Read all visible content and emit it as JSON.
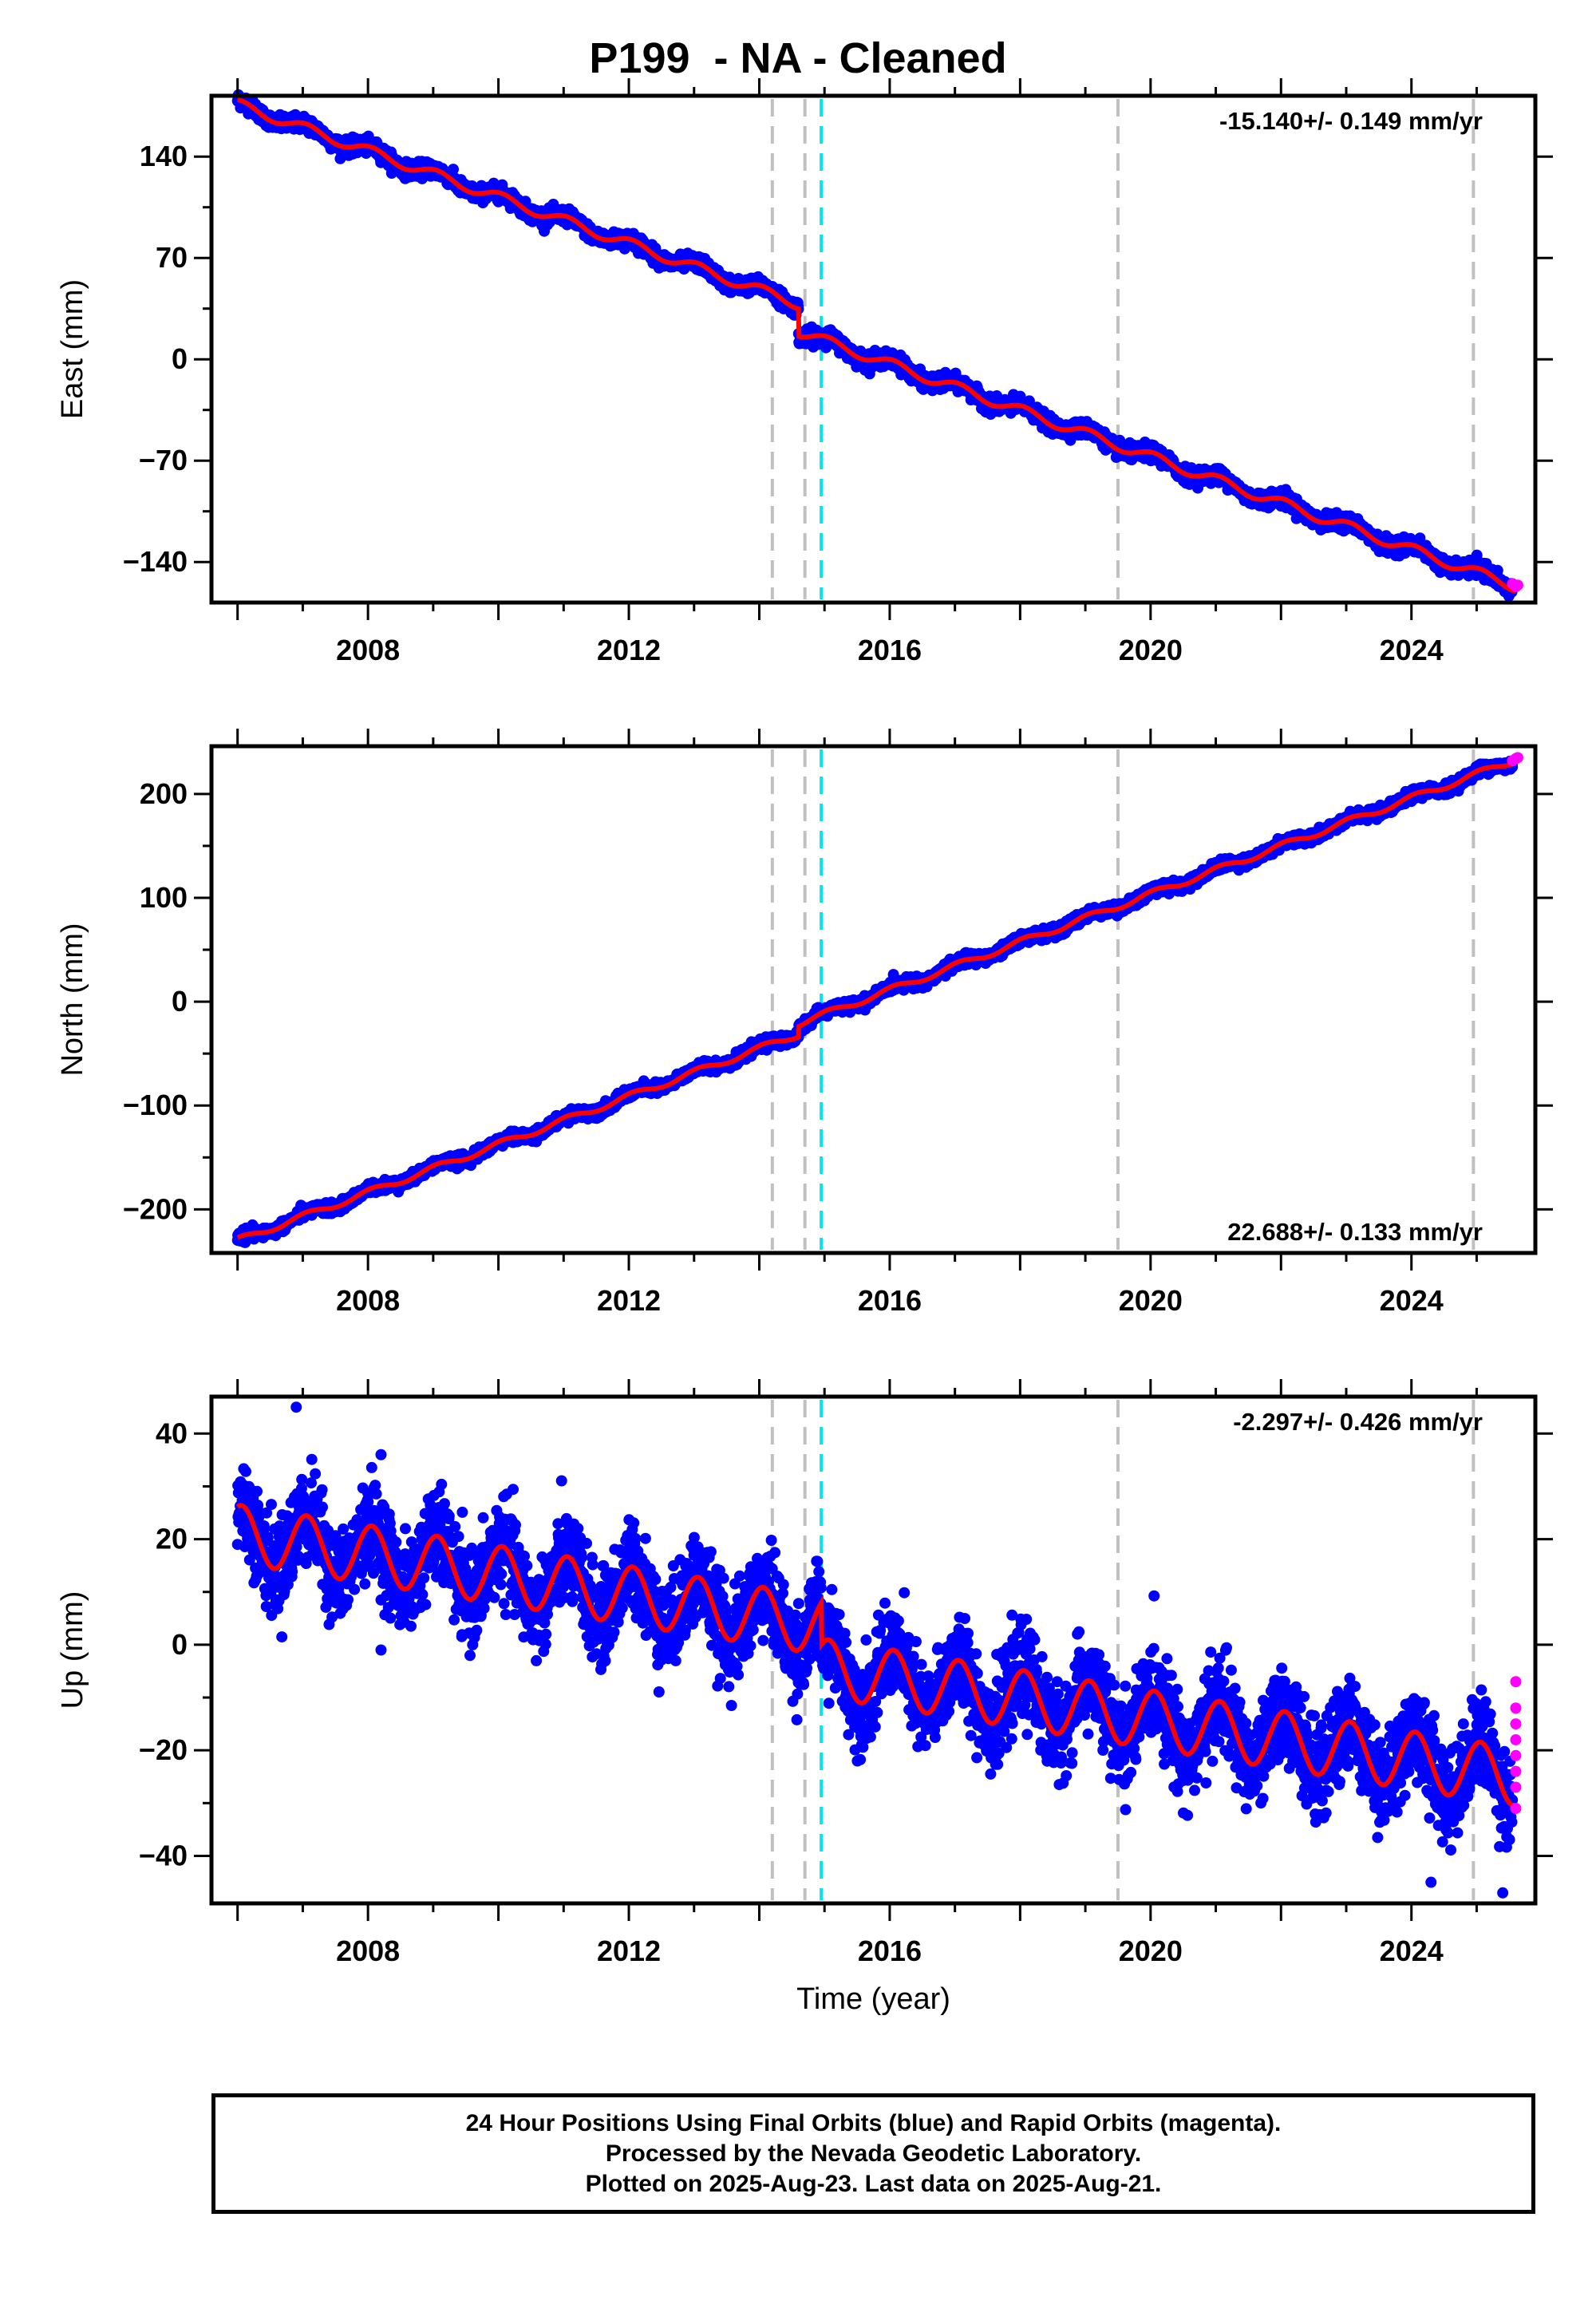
{
  "title": "P199  - NA - Cleaned",
  "footer": {
    "line1": "24 Hour Positions Using Final Orbits (blue) and Rapid Orbits (magenta).",
    "line2": "Processed by the Nevada Geodetic Laboratory.",
    "line3": "Plotted on 2025-Aug-23. Last data on 2025-Aug-21."
  },
  "colors": {
    "final_orbits": "#0000ff",
    "rapid_orbits": "#ff00ff",
    "model": "#ff0000",
    "equipment_change": "#c0c0c0",
    "earthquake": "#00e5ee"
  },
  "chart_data": [
    {
      "type": "scatter",
      "ylabel": "East (mm)",
      "xlabel": "",
      "xlim": [
        2005.6,
        2025.9
      ],
      "ylim": [
        -168,
        182
      ],
      "yticks": [
        -140,
        -70,
        0,
        70,
        140
      ],
      "xticks": [
        2008,
        2012,
        2016,
        2020,
        2024
      ],
      "rate_label": "-15.140+/- 0.149 mm/yr",
      "rate_label_position": "top-right",
      "trend": {
        "start": [
          2006.0,
          176
        ],
        "end": [
          2025.6,
          -157
        ]
      },
      "offsets": [
        {
          "year": 2014.6,
          "value": -19
        }
      ],
      "seasonal_amplitude": 3.5,
      "scatter_sd": 2.5,
      "rapid_points": [
        [
          2025.55,
          -155
        ],
        [
          2025.6,
          -157
        ],
        [
          2025.63,
          -156
        ]
      ],
      "vlines_grey": [
        2014.2,
        2014.7,
        2019.5,
        2024.95
      ],
      "vlines_cyan": [
        2014.95
      ]
    },
    {
      "type": "scatter",
      "ylabel": "North (mm)",
      "xlabel": "",
      "xlim": [
        2005.6,
        2025.9
      ],
      "ylim": [
        -242,
        246
      ],
      "yticks": [
        -200,
        -100,
        0,
        100,
        200
      ],
      "xticks": [
        2008,
        2012,
        2016,
        2020,
        2024
      ],
      "rate_label": "22.688+/- 0.133 mm/yr",
      "rate_label_position": "bottom-right",
      "trend": {
        "start": [
          2006.0,
          -230
        ],
        "end": [
          2025.6,
          233
        ]
      },
      "offsets": [
        {
          "year": 2014.6,
          "value": 10
        }
      ],
      "seasonal_amplitude": 3.0,
      "scatter_sd": 2.5,
      "rapid_points": [
        [
          2025.55,
          232
        ],
        [
          2025.6,
          234
        ],
        [
          2025.63,
          235
        ]
      ],
      "vlines_grey": [
        2014.2,
        2014.7,
        2019.5,
        2024.95
      ],
      "vlines_cyan": [
        2014.95
      ]
    },
    {
      "type": "scatter",
      "ylabel": "Up (mm)",
      "xlabel": "Time (year)",
      "xlim": [
        2005.6,
        2025.9
      ],
      "ylim": [
        -49,
        47
      ],
      "yticks": [
        -40,
        -20,
        0,
        20,
        40
      ],
      "xticks": [
        2008,
        2012,
        2016,
        2020,
        2024
      ],
      "rate_label": "-2.297+/- 0.426 mm/yr",
      "rate_label_position": "top-right",
      "trend": {
        "start": [
          2006.0,
          21
        ],
        "end": [
          2025.6,
          -25
        ]
      },
      "offsets": [
        {
          "year": 2014.95,
          "value": -8
        }
      ],
      "seasonal_amplitude": 5.5,
      "scatter_sd": 4.2,
      "outliers": [
        [
          2006.9,
          45
        ],
        [
          2008.2,
          36
        ],
        [
          2008.2,
          -1
        ],
        [
          2024.3,
          -45
        ],
        [
          2025.4,
          -47
        ]
      ],
      "rapid_points": [
        [
          2025.6,
          -7
        ],
        [
          2025.6,
          -12
        ],
        [
          2025.6,
          -15
        ],
        [
          2025.6,
          -18
        ],
        [
          2025.6,
          -21
        ],
        [
          2025.6,
          -24
        ],
        [
          2025.6,
          -27
        ],
        [
          2025.6,
          -31
        ]
      ],
      "vlines_grey": [
        2014.2,
        2014.7,
        2019.5,
        2024.95
      ],
      "vlines_cyan": [
        2014.95
      ]
    }
  ]
}
